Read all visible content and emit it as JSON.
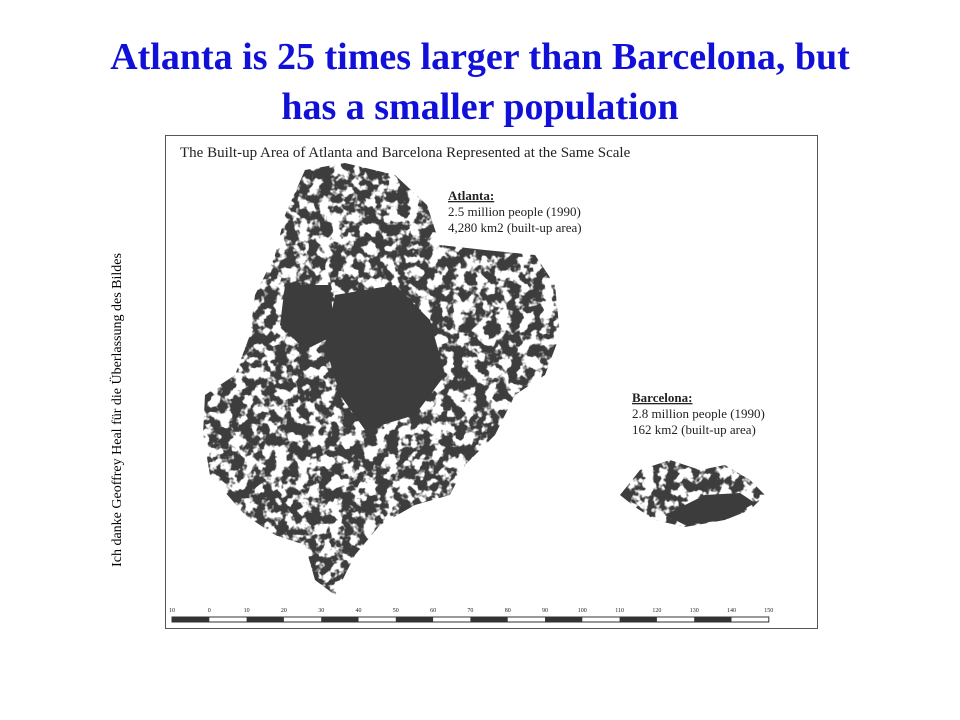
{
  "slide": {
    "title_lines": [
      "Atlanta is 25 times larger than Barcelona, but",
      "has a smaller population"
    ],
    "side_caption": "Ich danke Geoffrey Heal für die Überlassung des Bildes",
    "figure": {
      "title": "The Built-up Area of Atlanta and Barcelona Represented at the Same Scale",
      "atlanta": {
        "name": "Atlanta:",
        "lines": [
          "2.5 million people (1990)",
          "4,280  km2 (built-up area)"
        ]
      },
      "barcelona": {
        "name": "Barcelona:",
        "lines": [
          "2.8 million people (1990)",
          "162  km2 (built-up area)"
        ]
      },
      "scale_labels": [
        10,
        0,
        10,
        20,
        30,
        40,
        50,
        60,
        70,
        80,
        90,
        100,
        110,
        120,
        130,
        140,
        150
      ]
    }
  }
}
